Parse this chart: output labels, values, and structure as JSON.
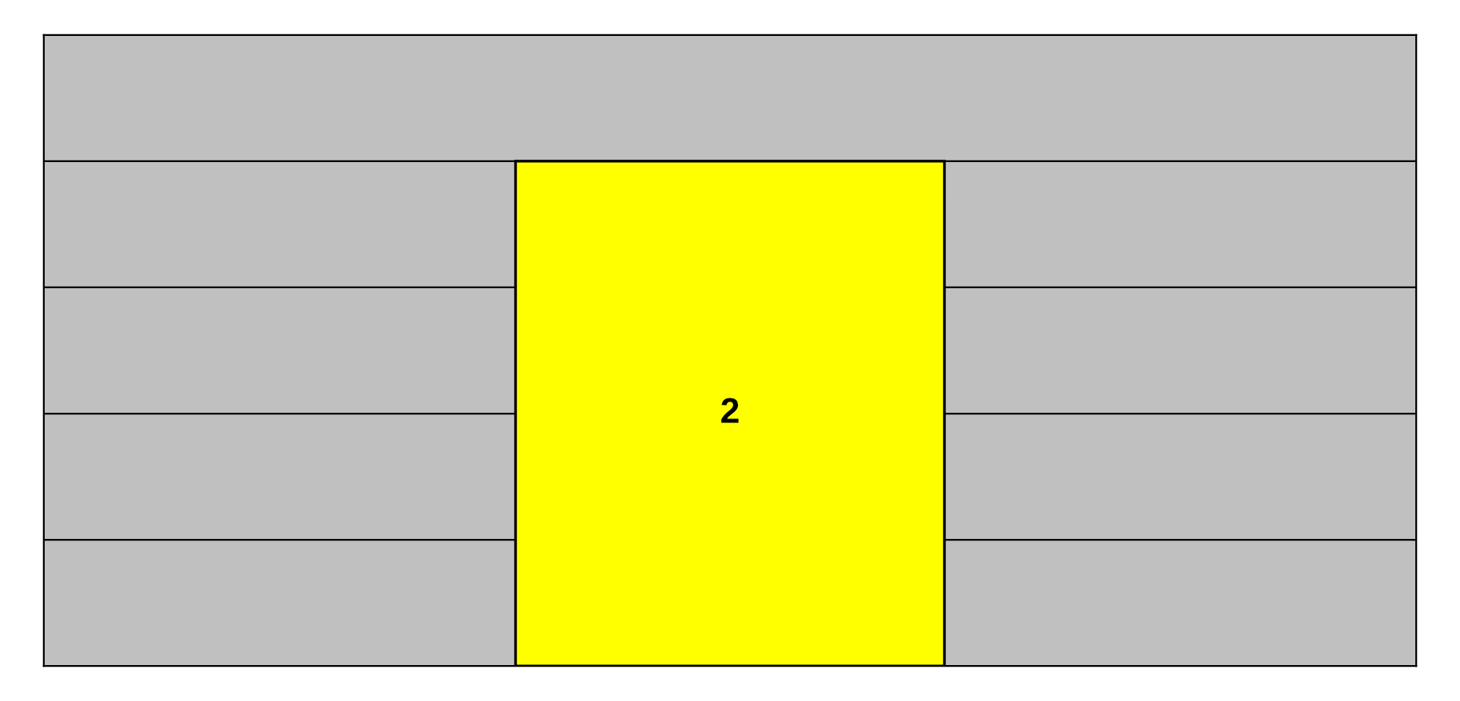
{
  "chart_data": {
    "type": "bar",
    "categories": [
      null
    ],
    "values": [
      2
    ],
    "color": "#ffff00",
    "ylim": [
      0,
      2.5
    ],
    "yticks": [
      {
        "value": 0,
        "label": null
      },
      {
        "value": 0.5,
        "label": null
      },
      {
        "value": 1,
        "label": null
      },
      {
        "value": 1.5,
        "label": null
      },
      {
        "value": 2,
        "label": null
      },
      {
        "value": 2.5,
        "label": null
      }
    ],
    "grid": "y",
    "data_labels": true
  }
}
